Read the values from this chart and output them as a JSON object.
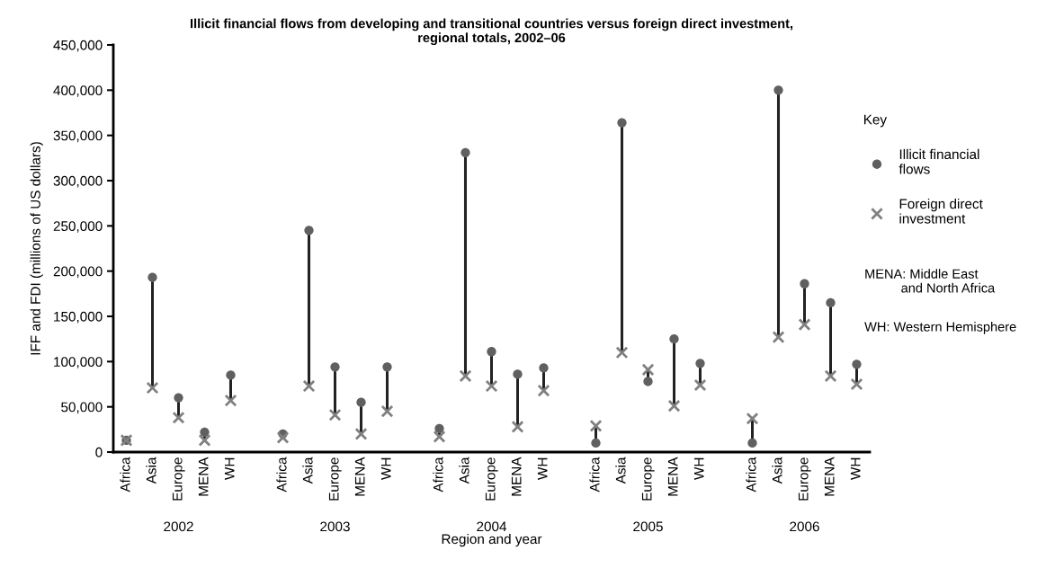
{
  "chart_data": {
    "type": "scatter",
    "title": "Illicit financial flows from developing and transitional countries versus foreign direct investment,\nregional totals, 2002–06",
    "xlabel": "Region and year",
    "ylabel": "IFF and FDI (millions of US dollars)",
    "legend_title": "Key",
    "categories": [
      "Africa",
      "Asia",
      "Europe",
      "MENA",
      "WH",
      null,
      "Africa",
      "Asia",
      "Europe",
      "MENA",
      "WH",
      null,
      "Africa",
      "Asia",
      "Europe",
      "MENA",
      "WH",
      null,
      "Africa",
      "Asia",
      "Europe",
      "MENA",
      "WH",
      null,
      "Africa",
      "Asia",
      "Europe",
      "MENA",
      "WH"
    ],
    "series": [
      {
        "name": "Illicit financial flows",
        "color": "#606060",
        "marker": "circle",
        "values": [
          13000,
          193000,
          60000,
          22000,
          85000,
          null,
          20000,
          245000,
          94000,
          55000,
          94000,
          null,
          26000,
          331000,
          111000,
          86000,
          93000,
          null,
          10000,
          364000,
          78000,
          125000,
          98000,
          null,
          10000,
          400000,
          186000,
          165000,
          97000
        ]
      },
      {
        "name": "Foreign direct investment",
        "color": "#808080",
        "marker": "cross",
        "values": [
          13000,
          71000,
          38000,
          13000,
          57000,
          null,
          16000,
          73000,
          41000,
          20000,
          45000,
          null,
          17000,
          84000,
          73000,
          28000,
          68000,
          null,
          29000,
          110000,
          91000,
          51000,
          74000,
          null,
          37000,
          127000,
          141000,
          84000,
          75000
        ]
      }
    ],
    "ylim": [
      0,
      450000
    ],
    "yticks": [
      {
        "value": 0,
        "label": "0"
      },
      {
        "value": 50000,
        "label": "50,000"
      },
      {
        "value": 100000,
        "label": "100,000"
      },
      {
        "value": 150000,
        "label": "150,000"
      },
      {
        "value": 200000,
        "label": "200,000"
      },
      {
        "value": 250000,
        "label": "250,000"
      },
      {
        "value": 300000,
        "label": "300,000"
      },
      {
        "value": 350000,
        "label": "350,000"
      },
      {
        "value": 400000,
        "label": "400,000"
      },
      {
        "value": 450000,
        "label": "450,000"
      }
    ],
    "annotations": [
      "2002",
      "2003",
      "2004",
      "2005",
      "2006",
      "MENA: Middle East\n          and North Africa",
      "WH: Western Hemisphere"
    ],
    "grid": false,
    "legend": "right"
  }
}
